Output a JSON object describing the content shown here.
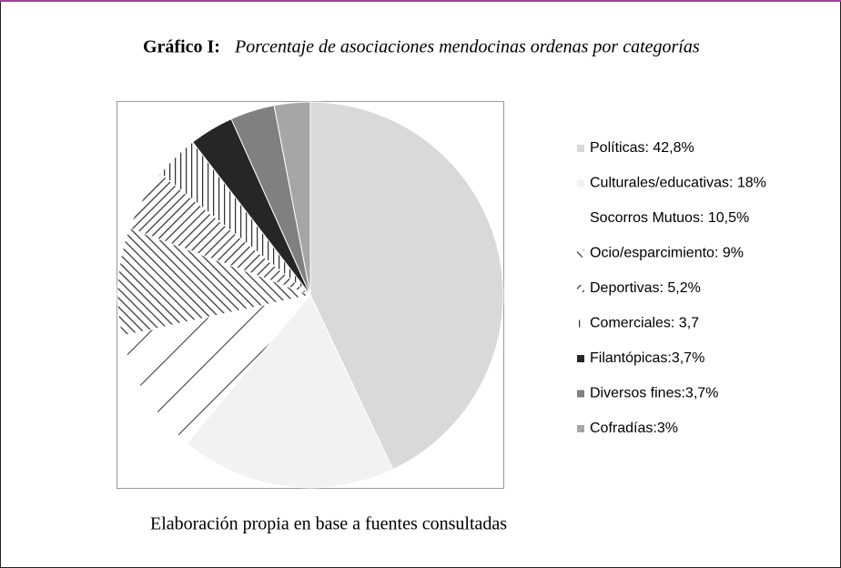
{
  "chart_data": {
    "type": "pie",
    "title_label": "Gráfico I:",
    "title": "Porcentaje de asociaciones mendocinas ordenas por categorías",
    "caption": "Elaboración propia en base a fuentes consultadas",
    "categories": [
      "Políticas: 42,8%",
      "Culturales/educativas: 18%",
      "Socorros Mutuos: 10,5%",
      "Ocio/esparcimiento: 9%",
      "Deportivas: 5,2%",
      "Comerciales: 3,7",
      "Filantópicas:3,7%",
      "Diversos fines:3,7%",
      "Cofradías:3%"
    ],
    "values": [
      42.8,
      18,
      10.5,
      9,
      5.2,
      3.7,
      3.7,
      3.7,
      3
    ],
    "colors": [
      "#d9d9d9",
      "#f2f2f2",
      "#ffffff",
      "#ffffff",
      "#ffffff",
      "#ffffff",
      "#262626",
      "#808080",
      "#a6a6a6"
    ]
  }
}
